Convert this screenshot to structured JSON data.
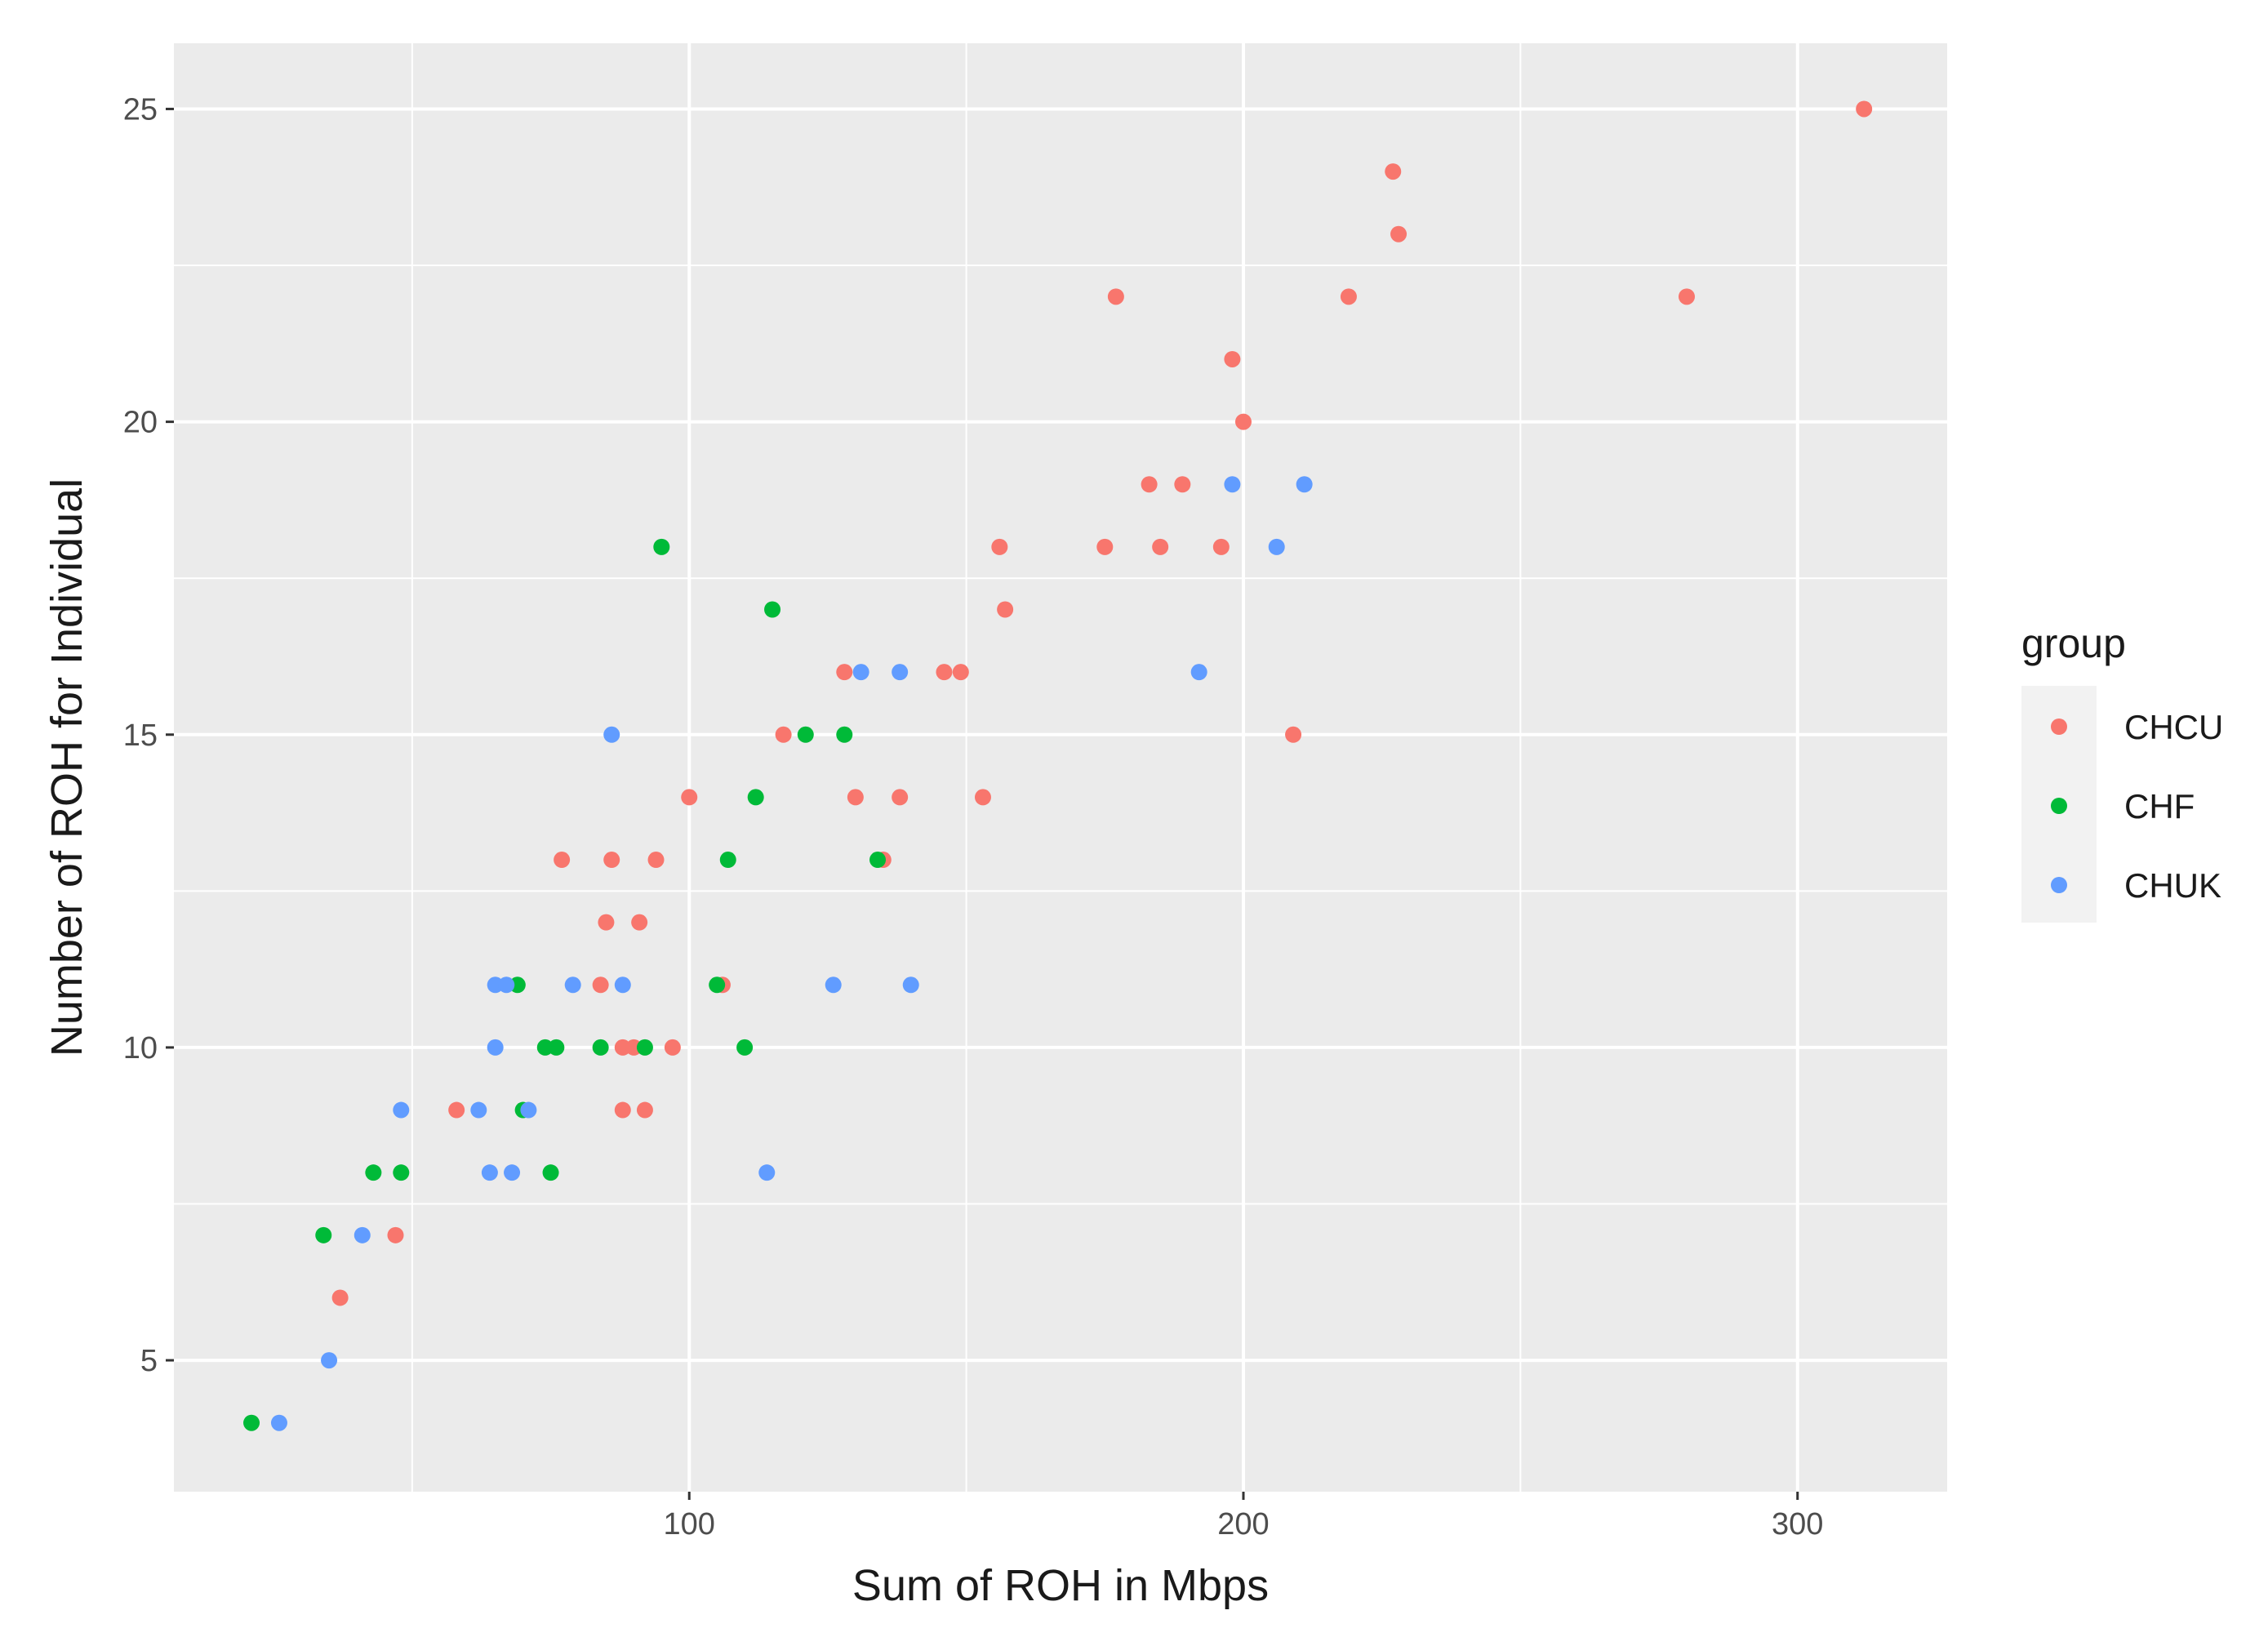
{
  "chart_data": {
    "type": "scatter",
    "title": "",
    "xlabel": "Sum of ROH in Mbps",
    "ylabel": "Number of ROH for Individual",
    "xlim": [
      7,
      327
    ],
    "ylim": [
      2.9,
      26.05
    ],
    "x_ticks": [
      100,
      200,
      300
    ],
    "y_ticks": [
      5,
      10,
      15,
      20,
      25
    ],
    "grid": true,
    "legend": {
      "title": "group",
      "position": "right"
    },
    "series": [
      {
        "name": "CHCU",
        "color": "#F8766D",
        "points": [
          [
            312,
            25
          ],
          [
            227,
            24
          ],
          [
            228,
            23
          ],
          [
            177,
            22
          ],
          [
            219,
            22
          ],
          [
            280,
            22
          ],
          [
            198,
            21
          ],
          [
            200,
            20
          ],
          [
            183,
            19
          ],
          [
            189,
            19
          ],
          [
            156,
            18
          ],
          [
            175,
            18
          ],
          [
            185,
            18
          ],
          [
            196,
            18
          ],
          [
            157,
            17
          ],
          [
            128,
            16
          ],
          [
            146,
            16
          ],
          [
            149,
            16
          ],
          [
            117,
            15
          ],
          [
            209,
            15
          ],
          [
            100,
            14
          ],
          [
            130,
            14
          ],
          [
            138,
            14
          ],
          [
            153,
            14
          ],
          [
            77,
            13
          ],
          [
            86,
            13
          ],
          [
            94,
            13
          ],
          [
            135,
            13
          ],
          [
            85,
            12
          ],
          [
            91,
            12
          ],
          [
            84,
            11
          ],
          [
            106,
            11
          ],
          [
            58,
            9
          ],
          [
            88,
            9
          ],
          [
            92,
            9
          ],
          [
            88,
            10
          ],
          [
            90,
            10
          ],
          [
            97,
            10
          ],
          [
            47,
            7
          ],
          [
            37,
            6
          ]
        ]
      },
      {
        "name": "CHF",
        "color": "#00BA38",
        "points": [
          [
            95,
            18
          ],
          [
            115,
            17
          ],
          [
            121,
            15
          ],
          [
            128,
            15
          ],
          [
            112,
            14
          ],
          [
            107,
            13
          ],
          [
            134,
            13
          ],
          [
            69,
            11
          ],
          [
            105,
            11
          ],
          [
            74,
            10
          ],
          [
            76,
            10
          ],
          [
            84,
            10
          ],
          [
            92,
            10
          ],
          [
            110,
            10
          ],
          [
            70,
            9
          ],
          [
            43,
            8
          ],
          [
            48,
            8
          ],
          [
            75,
            8
          ],
          [
            34,
            7
          ],
          [
            21,
            4
          ]
        ]
      },
      {
        "name": "CHUK",
        "color": "#619CFF",
        "points": [
          [
            198,
            19
          ],
          [
            211,
            19
          ],
          [
            206,
            18
          ],
          [
            192,
            16
          ],
          [
            131,
            16
          ],
          [
            138,
            16
          ],
          [
            86,
            15
          ],
          [
            65,
            11
          ],
          [
            67,
            11
          ],
          [
            79,
            11
          ],
          [
            88,
            11
          ],
          [
            126,
            11
          ],
          [
            140,
            11
          ],
          [
            65,
            10
          ],
          [
            48,
            9
          ],
          [
            62,
            9
          ],
          [
            71,
            9
          ],
          [
            64,
            8
          ],
          [
            68,
            8
          ],
          [
            114,
            8
          ],
          [
            41,
            7
          ],
          [
            35,
            5
          ],
          [
            26,
            4
          ]
        ]
      }
    ]
  }
}
